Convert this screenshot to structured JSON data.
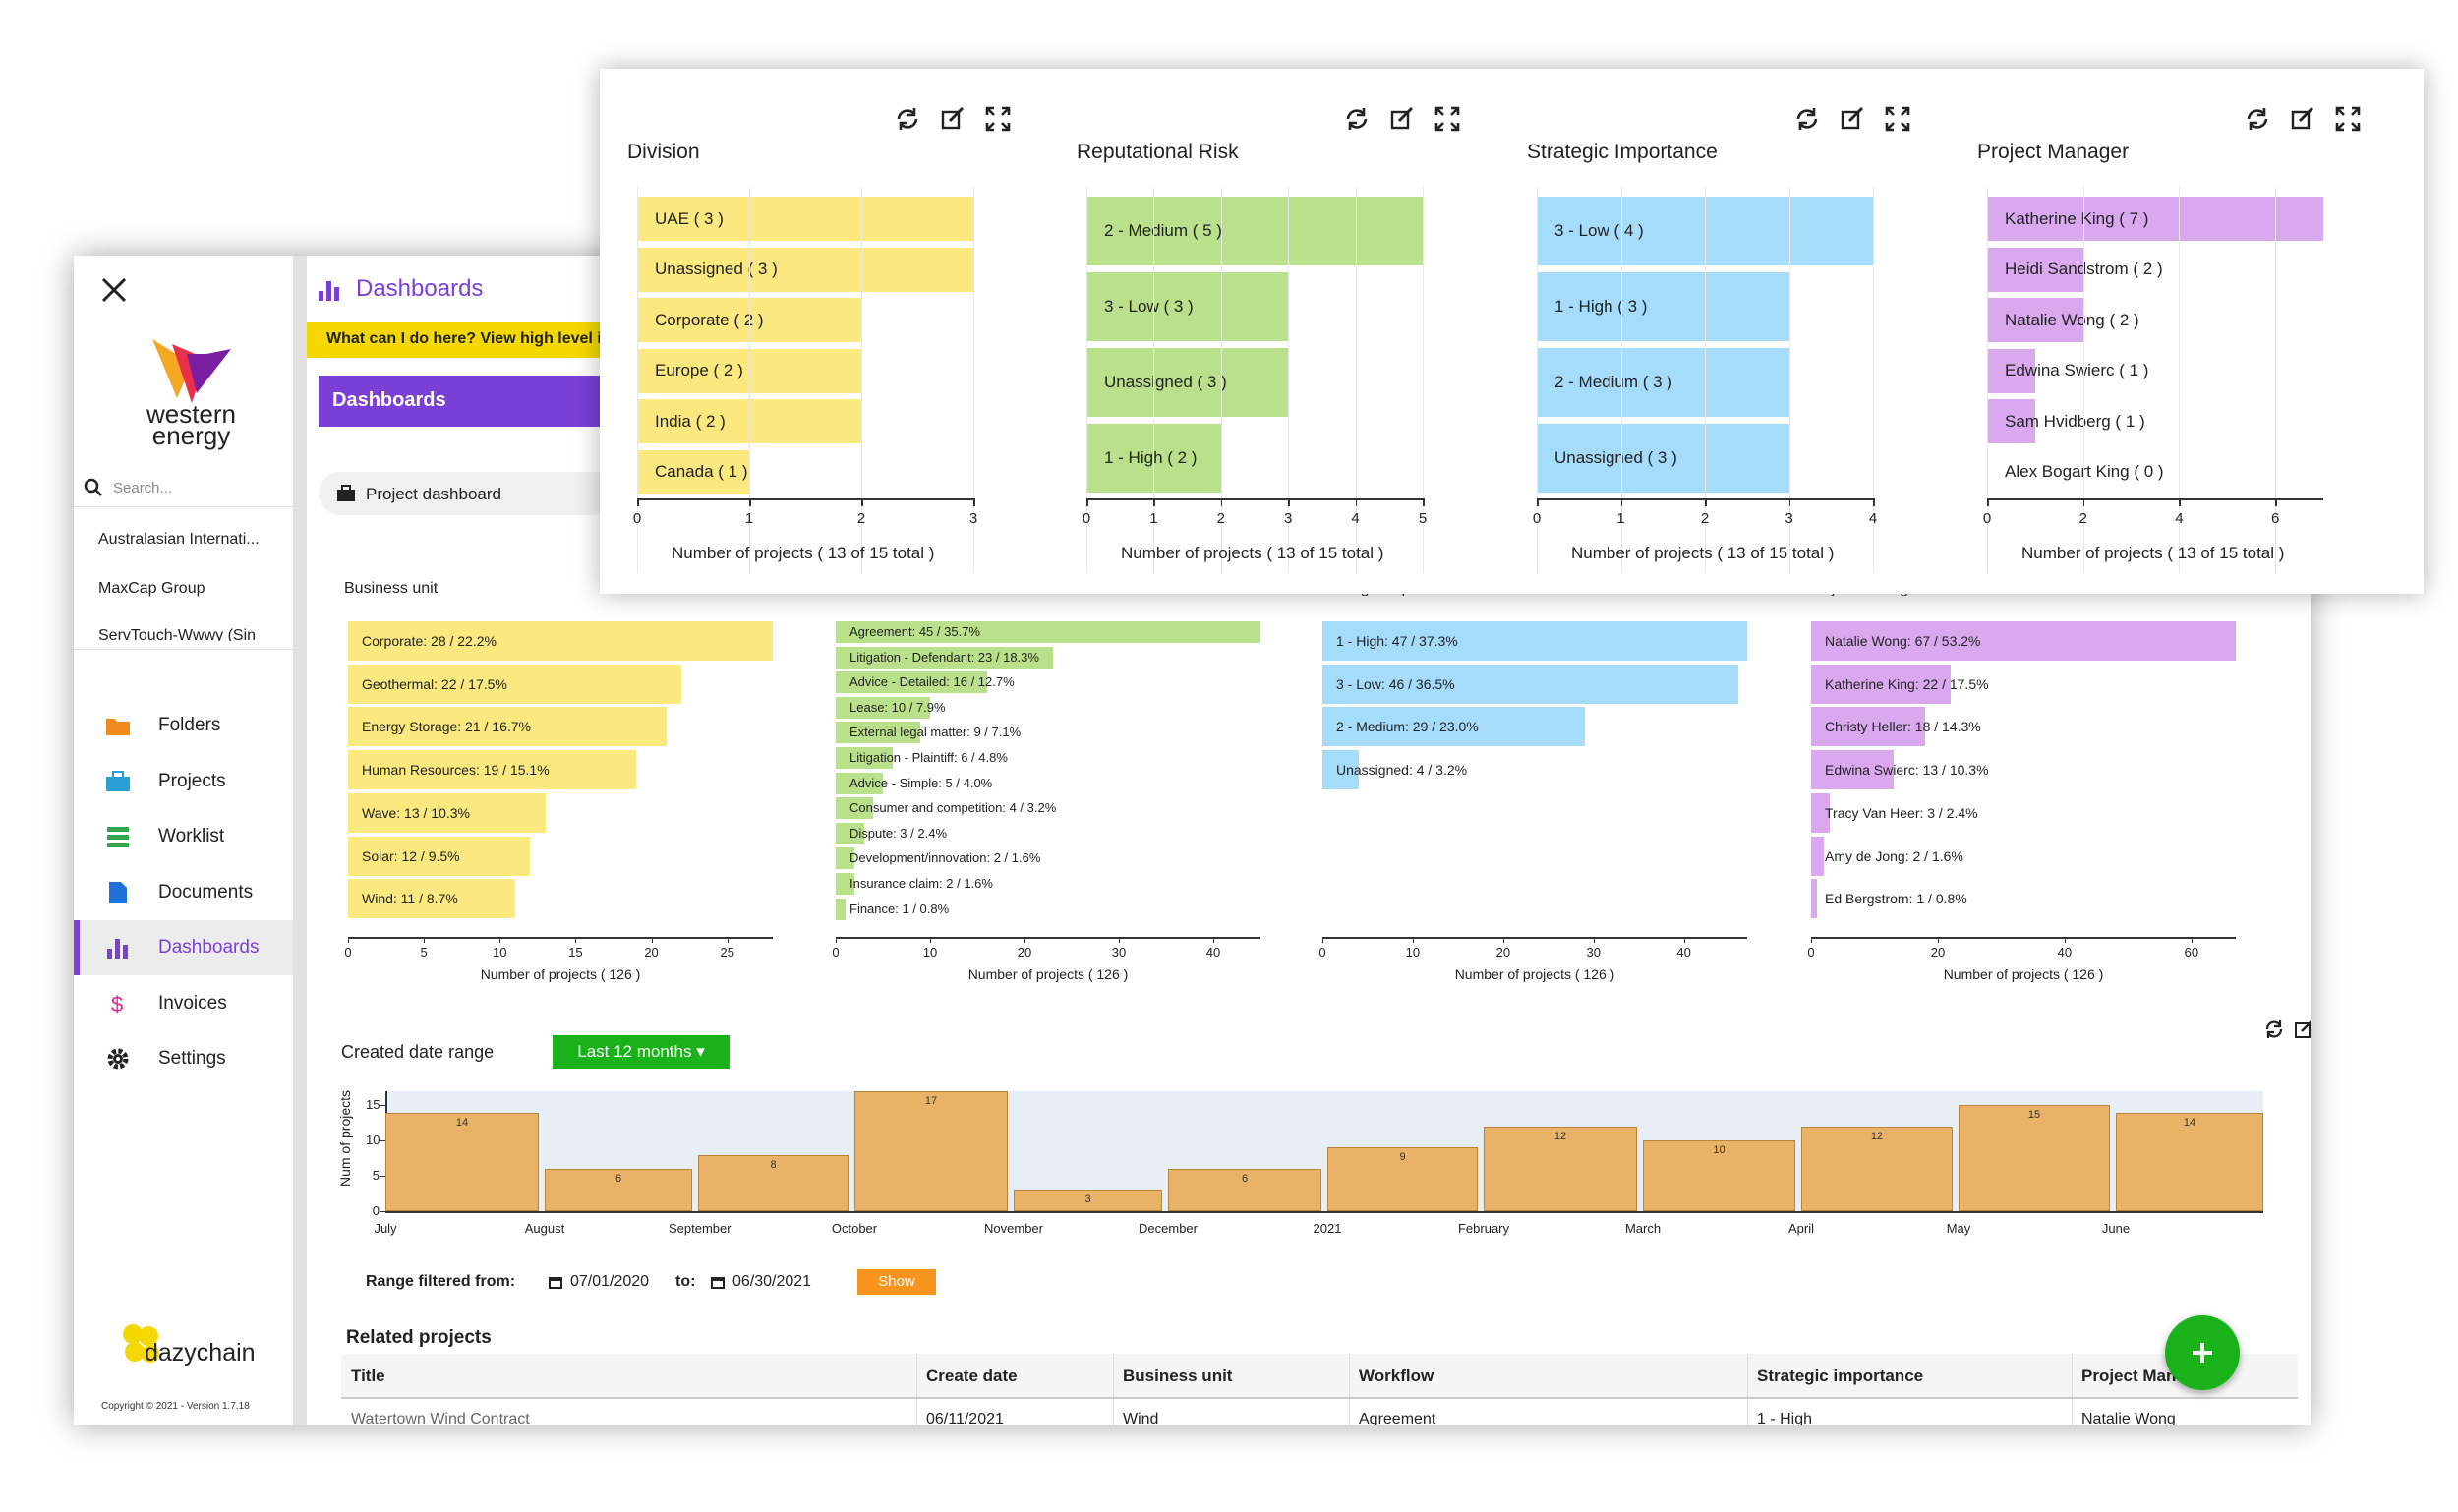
{
  "app": {
    "brand": {
      "line1": "western",
      "line2": "energy"
    },
    "header_title": "Dashboards",
    "help_text": "What can I do here? View high level inf",
    "section_title": "Dashboards",
    "dashboard_select": "Project dashboard",
    "search_placeholder": "Search...",
    "clients": [
      "Australasian Internati...",
      "MaxCap Group",
      "ServTouch-Wwwy (Sin"
    ],
    "nav": [
      {
        "label": "Folders",
        "icon": "folder-icon",
        "color": "#f08a1c"
      },
      {
        "label": "Projects",
        "icon": "briefcase-icon",
        "color": "#2a9fd6"
      },
      {
        "label": "Worklist",
        "icon": "list-icon",
        "color": "#2fa84f"
      },
      {
        "label": "Documents",
        "icon": "document-icon",
        "color": "#1f6fd6"
      },
      {
        "label": "Dashboards",
        "icon": "bar-chart-icon",
        "color": "#7a3fd6"
      },
      {
        "label": "Invoices",
        "icon": "dollar-icon",
        "color": "#e0248a"
      },
      {
        "label": "Settings",
        "icon": "gear-icon",
        "color": "#222222"
      }
    ],
    "footer_brand": "dazychain",
    "copyright": "Copyright © 2021 - Version 1.7.18"
  },
  "colors": {
    "accent": "#7a3fd6",
    "yellow": "#fbe87e",
    "green": "#b9e08a",
    "blue": "#a6dcfb",
    "purple": "#d9a8ef",
    "orange": "#e8b366",
    "green_btn": "#19b21a",
    "show_btn": "#f7941d"
  },
  "charts_main": [
    {
      "title": "Business unit",
      "xlabel": "Number of projects ( 126 )",
      "color": "#fbe87e",
      "ticks": [
        0,
        5,
        10,
        15,
        20,
        25
      ],
      "xmax": 28,
      "labels": [
        "Corporate: 28 / 22.2%",
        "Geothermal: 22 / 17.5%",
        "Energy Storage: 21 / 16.7%",
        "Human Resources: 19 / 15.1%",
        "Wave: 13 / 10.3%",
        "Solar: 12 / 9.5%",
        "Wind: 11 / 8.7%"
      ],
      "values": [
        28,
        22,
        21,
        19,
        13,
        12,
        11
      ]
    },
    {
      "title": "Workflow",
      "xlabel": "Number of projects ( 126 )",
      "color": "#b9e08a",
      "ticks": [
        0,
        10,
        20,
        30,
        40
      ],
      "xmax": 45,
      "labels": [
        "Agreement: 45 / 35.7%",
        "Litigation - Defendant: 23 / 18.3%",
        "Advice - Detailed: 16 / 12.7%",
        "Lease: 10 / 7.9%",
        "External legal matter: 9 / 7.1%",
        "Litigation - Plaintiff: 6 / 4.8%",
        "Advice - Simple: 5 / 4.0%",
        "Consumer and competition: 4 / 3.2%",
        "Dispute: 3 / 2.4%",
        "Development/innovation: 2 / 1.6%",
        "Insurance claim: 2 / 1.6%",
        "Finance: 1 / 0.8%"
      ],
      "values": [
        45,
        23,
        16,
        10,
        9,
        6,
        5,
        4,
        3,
        2,
        2,
        1
      ]
    },
    {
      "title": "Strategic importance",
      "xlabel": "Number of projects ( 126 )",
      "color": "#a6dcfb",
      "ticks": [
        0,
        10,
        20,
        30,
        40
      ],
      "xmax": 47,
      "labels": [
        "1 - High: 47 / 37.3%",
        "3 - Low: 46 / 36.5%",
        "2 - Medium: 29 / 23.0%",
        "Unassigned: 4 / 3.2%"
      ],
      "values": [
        47,
        46,
        29,
        4
      ]
    },
    {
      "title": "Project Manager",
      "xlabel": "Number of projects ( 126 )",
      "color": "#d9a8ef",
      "ticks": [
        0,
        20,
        40,
        60
      ],
      "xmax": 67,
      "labels": [
        "Natalie Wong: 67 / 53.2%",
        "Katherine King: 22 / 17.5%",
        "Christy Heller: 18 / 14.3%",
        "Edwina Swierc: 13 / 10.3%",
        "Tracy Van Heer: 3 / 2.4%",
        "Amy de Jong: 2 / 1.6%",
        "Ed Bergstrom: 1 / 0.8%"
      ],
      "values": [
        67,
        22,
        18,
        13,
        3,
        2,
        1
      ]
    }
  ],
  "date_range": {
    "label": "Created date range",
    "button": "Last 12 months",
    "ylabel": "Num of projects",
    "yticks": [
      0,
      5,
      10,
      15
    ],
    "months": [
      "July",
      "August",
      "September",
      "October",
      "November",
      "December",
      "2021",
      "February",
      "March",
      "April",
      "May",
      "June"
    ],
    "values": [
      14,
      6,
      8,
      17,
      3,
      6,
      9,
      12,
      10,
      12,
      15,
      14
    ],
    "range_label": "Range filtered from:",
    "from": "07/01/2020",
    "to_label": "to:",
    "to": "06/30/2021",
    "show": "Show"
  },
  "related": {
    "title": "Related projects",
    "columns": [
      "Title",
      "Create date",
      "Business unit",
      "Workflow",
      "Strategic importance",
      "Project Manager"
    ],
    "rows": [
      [
        "Watertown Wind Contract",
        "06/11/2021",
        "Wind",
        "Agreement",
        "1 - High",
        "Natalie Wong"
      ]
    ]
  },
  "card_charts": [
    {
      "title": "Division",
      "xlabel": "Number of projects ( 13 of 15 total )",
      "color": "#fbe87e",
      "xmax": 3,
      "ticks": [
        0,
        1,
        2,
        3
      ],
      "labels": [
        "UAE ( 3 )",
        "Unassigned ( 3 )",
        "Corporate ( 2 )",
        "Europe ( 2 )",
        "India ( 2 )",
        "Canada ( 1 )"
      ],
      "values": [
        3,
        3,
        2,
        2,
        2,
        1
      ]
    },
    {
      "title": "Reputational Risk",
      "xlabel": "Number of projects ( 13 of 15 total )",
      "color": "#b9e08a",
      "xmax": 5,
      "ticks": [
        0,
        1,
        2,
        3,
        4,
        5
      ],
      "labels": [
        "2 - Medium ( 5 )",
        "3 - Low ( 3 )",
        "Unassigned ( 3 )",
        "1 - High ( 2 )"
      ],
      "values": [
        5,
        3,
        3,
        2
      ]
    },
    {
      "title": "Strategic Importance",
      "xlabel": "Number of projects ( 13 of 15 total )",
      "color": "#a6dcfb",
      "xmax": 4,
      "ticks": [
        0,
        1,
        2,
        3,
        4
      ],
      "labels": [
        "3 - Low ( 4 )",
        "1 - High ( 3 )",
        "2 - Medium ( 3 )",
        "Unassigned ( 3 )"
      ],
      "values": [
        4,
        3,
        3,
        3
      ]
    },
    {
      "title": "Project Manager",
      "xlabel": "Number of projects ( 13 of 15 total )",
      "color": "#d9a8ef",
      "xmax": 7,
      "ticks": [
        0,
        2,
        4,
        6
      ],
      "labels": [
        "Katherine King ( 7 )",
        "Heidi Sandstrom ( 2 )",
        "Natalie Wong ( 2 )",
        "Edwina Swierc ( 1 )",
        "Sam Hvidberg ( 1 )",
        "Alex Bogart King ( 0 )"
      ],
      "values": [
        7,
        2,
        2,
        1,
        1,
        0
      ]
    }
  ],
  "chart_data": [
    {
      "type": "bar",
      "title": "Division",
      "categories": [
        "UAE",
        "Unassigned",
        "Corporate",
        "Europe",
        "India",
        "Canada"
      ],
      "values": [
        3,
        3,
        2,
        2,
        2,
        1
      ],
      "xlabel": "Number of projects ( 13 of 15 total )",
      "xlim": [
        0,
        3
      ]
    },
    {
      "type": "bar",
      "title": "Reputational Risk",
      "categories": [
        "2 - Medium",
        "3 - Low",
        "Unassigned",
        "1 - High"
      ],
      "values": [
        5,
        3,
        3,
        2
      ],
      "xlabel": "Number of projects ( 13 of 15 total )",
      "xlim": [
        0,
        5
      ]
    },
    {
      "type": "bar",
      "title": "Strategic Importance",
      "categories": [
        "3 - Low",
        "1 - High",
        "2 - Medium",
        "Unassigned"
      ],
      "values": [
        4,
        3,
        3,
        3
      ],
      "xlabel": "Number of projects ( 13 of 15 total )",
      "xlim": [
        0,
        4
      ]
    },
    {
      "type": "bar",
      "title": "Project Manager",
      "categories": [
        "Katherine King",
        "Heidi Sandstrom",
        "Natalie Wong",
        "Edwina Swierc",
        "Sam Hvidberg",
        "Alex Bogart King"
      ],
      "values": [
        7,
        2,
        2,
        1,
        1,
        0
      ],
      "xlabel": "Number of projects ( 13 of 15 total )",
      "xlim": [
        0,
        7
      ]
    },
    {
      "type": "bar",
      "title": "Business unit",
      "categories": [
        "Corporate",
        "Geothermal",
        "Energy Storage",
        "Human Resources",
        "Wave",
        "Solar",
        "Wind"
      ],
      "values": [
        28,
        22,
        21,
        19,
        13,
        12,
        11
      ],
      "xlabel": "Number of projects ( 126 )"
    },
    {
      "type": "bar",
      "title": "Workflow",
      "categories": [
        "Agreement",
        "Litigation - Defendant",
        "Advice - Detailed",
        "Lease",
        "External legal matter",
        "Litigation - Plaintiff",
        "Advice - Simple",
        "Consumer and competition",
        "Dispute",
        "Development/innovation",
        "Insurance claim",
        "Finance"
      ],
      "values": [
        45,
        23,
        16,
        10,
        9,
        6,
        5,
        4,
        3,
        2,
        2,
        1
      ],
      "xlabel": "Number of projects ( 126 )"
    },
    {
      "type": "bar",
      "title": "Strategic importance",
      "categories": [
        "1 - High",
        "3 - Low",
        "2 - Medium",
        "Unassigned"
      ],
      "values": [
        47,
        46,
        29,
        4
      ],
      "xlabel": "Number of projects ( 126 )"
    },
    {
      "type": "bar",
      "title": "Project Manager",
      "categories": [
        "Natalie Wong",
        "Katherine King",
        "Christy Heller",
        "Edwina Swierc",
        "Tracy Van Heer",
        "Amy de Jong",
        "Ed Bergstrom"
      ],
      "values": [
        67,
        22,
        18,
        13,
        3,
        2,
        1
      ],
      "xlabel": "Number of projects ( 126 )"
    },
    {
      "type": "bar",
      "title": "Created date range",
      "categories": [
        "July",
        "August",
        "September",
        "October",
        "November",
        "December",
        "2021",
        "February",
        "March",
        "April",
        "May",
        "June"
      ],
      "values": [
        14,
        6,
        8,
        17,
        3,
        6,
        9,
        12,
        10,
        12,
        15,
        14
      ],
      "ylabel": "Num of projects",
      "ylim": [
        0,
        17
      ]
    }
  ]
}
